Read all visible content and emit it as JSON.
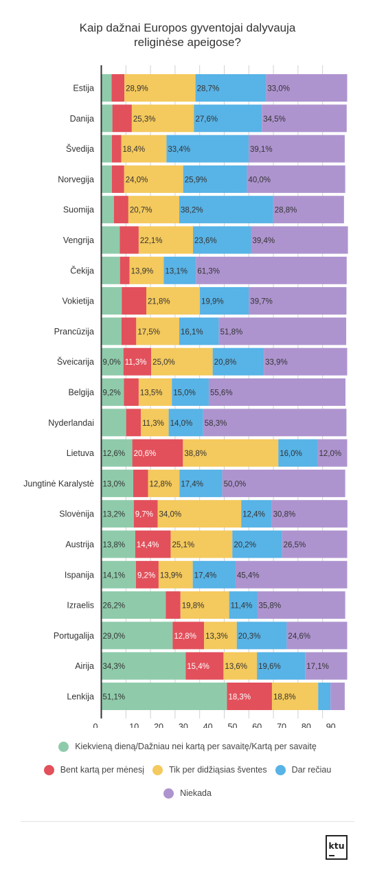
{
  "title_lines": [
    "Kaip dažnai Europos gyventojai dalyvauja",
    "religinėse apeigose?"
  ],
  "colors": {
    "daily_weekly": "#8fcbab",
    "monthly": "#e2505b",
    "holidays": "#f4c95d",
    "rarely": "#58b3e6",
    "never": "#ae94cf",
    "axis": "#333333",
    "grid": "#d0d0d0"
  },
  "legend": {
    "daily_weekly": "Kiekvieną dieną/Dažniau nei kartą per savaitę/Kartą per savaitę",
    "monthly": "Bent kartą per mėnesį",
    "holidays": "Tik per didžiąsias šventes",
    "rarely": "Dar rečiau",
    "never": "Niekada"
  },
  "logo_text": "ktu",
  "chart_data": {
    "type": "bar",
    "orientation": "horizontal",
    "stacked": true,
    "xlim": [
      0,
      100
    ],
    "xticks": [
      "0",
      "10",
      "20",
      "30",
      "40",
      "50",
      "60",
      "70",
      "80",
      "90"
    ],
    "grid": true,
    "legend_position": "bottom",
    "categories": [
      "Estija",
      "Danija",
      "Švedija",
      "Norvegija",
      "Suomija",
      "Vengrija",
      "Čekija",
      "Vokietija",
      "Prancūzija",
      "Šveicarija",
      "Belgija",
      "Nyderlandai",
      "Lietuva",
      "Jungtinė Karalystė",
      "Slovėnija",
      "Austrija",
      "Ispanija",
      "Izraelis",
      "Portugalija",
      "Airija",
      "Lenkija"
    ],
    "series": [
      {
        "key": "daily_weekly",
        "name": "Kiekvieną dieną/Dažniau nei kartą per savaitę/Kartą per savaitę",
        "values": [
          4.2,
          4.5,
          4.3,
          4.3,
          5.1,
          7.5,
          7.6,
          8.3,
          8.2,
          9.0,
          9.2,
          10.1,
          12.6,
          13.0,
          13.2,
          13.8,
          14.1,
          26.2,
          29.0,
          34.3,
          51.1
        ],
        "labels": [
          "",
          "",
          "",
          "",
          "",
          "",
          "",
          "",
          "",
          "9,0%",
          "9,2%",
          "",
          "12,6%",
          "13,0%",
          "13,2%",
          "13,8%",
          "14,1%",
          "26,2%",
          "29,0%",
          "34,3%",
          "51,1%"
        ]
      },
      {
        "key": "monthly",
        "name": "Bent kartą per mėnesį",
        "values": [
          5.2,
          7.9,
          3.8,
          5.0,
          5.9,
          7.7,
          3.9,
          10.0,
          6.0,
          11.3,
          6.0,
          6.0,
          20.6,
          6.0,
          9.7,
          14.4,
          9.2,
          6.0,
          12.8,
          15.4,
          18.3
        ],
        "labels": [
          "",
          "",
          "",
          "",
          "",
          "",
          "",
          "",
          "",
          "11,3%",
          "",
          "",
          "20,6%",
          "",
          "9,7%",
          "14,4%",
          "9,2%",
          "",
          "12,8%",
          "15,4%",
          "18,3%"
        ]
      },
      {
        "key": "holidays",
        "name": "Tik per didžiąsias šventes",
        "values": [
          28.9,
          25.3,
          18.4,
          24.0,
          20.7,
          22.1,
          13.9,
          21.8,
          17.5,
          25.0,
          13.5,
          11.3,
          38.8,
          12.8,
          34.0,
          25.1,
          13.9,
          19.8,
          13.3,
          13.6,
          18.8
        ],
        "labels": [
          "28,9%",
          "25,3%",
          "18,4%",
          "24,0%",
          "20,7%",
          "22,1%",
          "13,9%",
          "21,8%",
          "17,5%",
          "25,0%",
          "13,5%",
          "11,3%",
          "38,8%",
          "12,8%",
          "34,0%",
          "25,1%",
          "13,9%",
          "19,8%",
          "13,3%",
          "13,6%",
          "18,8%"
        ]
      },
      {
        "key": "rarely",
        "name": "Dar rečiau",
        "values": [
          28.7,
          27.6,
          33.4,
          25.9,
          38.2,
          23.6,
          13.1,
          19.9,
          16.1,
          20.8,
          15.0,
          14.0,
          16.0,
          17.4,
          12.4,
          20.2,
          17.4,
          11.4,
          20.3,
          19.6,
          5.0
        ],
        "labels": [
          "28,7%",
          "27,6%",
          "33,4%",
          "25,9%",
          "38,2%",
          "23,6%",
          "13,1%",
          "19,9%",
          "16,1%",
          "20,8%",
          "15,0%",
          "14,0%",
          "16,0%",
          "17,4%",
          "12,4%",
          "20,2%",
          "17,4%",
          "11,4%",
          "20,3%",
          "19,6%",
          ""
        ]
      },
      {
        "key": "never",
        "name": "Niekada",
        "values": [
          33.0,
          34.5,
          39.1,
          40.0,
          28.8,
          39.4,
          61.3,
          39.7,
          51.8,
          33.9,
          55.6,
          58.3,
          12.0,
          50.0,
          30.8,
          26.5,
          45.4,
          35.8,
          24.6,
          17.1,
          5.8
        ],
        "labels": [
          "33,0%",
          "34,5%",
          "39,1%",
          "40,0%",
          "28,8%",
          "39,4%",
          "61,3%",
          "39,7%",
          "51,8%",
          "33,9%",
          "55,6%",
          "58,3%",
          "12,0%",
          "50,0%",
          "30,8%",
          "26,5%",
          "45,4%",
          "35,8%",
          "24,6%",
          "17,1%",
          ""
        ]
      }
    ]
  }
}
